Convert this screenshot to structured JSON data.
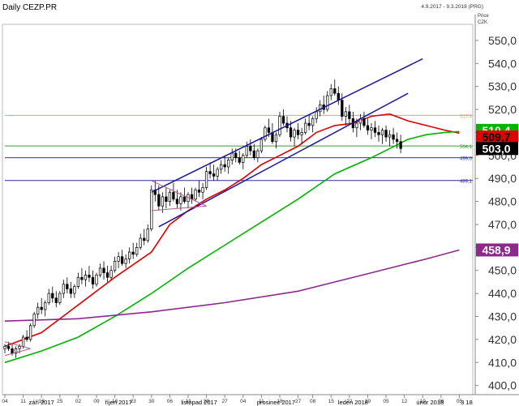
{
  "header": {
    "title": "Daily CEZP.PR",
    "date_range": "4.9.2017 - 9.3.2018 (PRG)"
  },
  "axis_caption": {
    "line1": "Price",
    "line2": "CZK"
  },
  "colors": {
    "candle_up": "#ffffff",
    "candle_down": "#000000",
    "ma_short": "#e00000",
    "ma_mid": "#00b400",
    "ma_long": "#8b2a8b",
    "channel": "#1a1a9a",
    "triangle": "#b05a8a",
    "line_517": "#f0a050",
    "line_504": "#30a030",
    "line_499": "#3030c0",
    "line_489": "#303090"
  },
  "chart_data": {
    "type": "candlestick",
    "title": "Daily CEZP.PR",
    "y_unit": "CZK",
    "ylim": [
      396,
      557
    ],
    "y_ticks": [
      {
        "v": 550,
        "label": "550,0"
      },
      {
        "v": 540,
        "label": "540,0"
      },
      {
        "v": 530,
        "label": "530,0"
      },
      {
        "v": 520,
        "label": "520,0"
      },
      {
        "v": 510,
        "label": "510,0"
      },
      {
        "v": 500,
        "label": "500,0"
      },
      {
        "v": 490,
        "label": "490,0"
      },
      {
        "v": 480,
        "label": "480,0"
      },
      {
        "v": 470,
        "label": "470,0"
      },
      {
        "v": 460,
        "label": "460,0"
      },
      {
        "v": 450,
        "label": "450,0"
      },
      {
        "v": 440,
        "label": "440,0"
      },
      {
        "v": 430,
        "label": "430,0"
      },
      {
        "v": 420,
        "label": "420,0"
      },
      {
        "v": 410,
        "label": "410,0"
      },
      {
        "v": 400,
        "label": "400,0"
      }
    ],
    "x_day_ticks": [
      {
        "i": 0,
        "label": "04"
      },
      {
        "i": 5,
        "label": "11"
      },
      {
        "i": 10,
        "label": "18"
      },
      {
        "i": 15,
        "label": "25"
      },
      {
        "i": 20,
        "label": "02"
      },
      {
        "i": 25,
        "label": "09"
      },
      {
        "i": 30,
        "label": "16"
      },
      {
        "i": 35,
        "label": "23"
      },
      {
        "i": 40,
        "label": "30"
      },
      {
        "i": 45,
        "label": "06"
      },
      {
        "i": 50,
        "label": "13"
      },
      {
        "i": 55,
        "label": "20"
      },
      {
        "i": 60,
        "label": "27"
      },
      {
        "i": 65,
        "label": "04"
      },
      {
        "i": 70,
        "label": "11"
      },
      {
        "i": 75,
        "label": "18"
      },
      {
        "i": 80,
        "label": "27"
      },
      {
        "i": 84,
        "label": "08"
      },
      {
        "i": 89,
        "label": "15"
      },
      {
        "i": 94,
        "label": "22"
      },
      {
        "i": 99,
        "label": "29"
      },
      {
        "i": 104,
        "label": "05"
      },
      {
        "i": 109,
        "label": "12"
      },
      {
        "i": 114,
        "label": "19"
      },
      {
        "i": 119,
        "label": "26"
      },
      {
        "i": 124,
        "label": "05"
      }
    ],
    "x_month_labels": [
      {
        "i": 10,
        "label": "září 2017"
      },
      {
        "i": 31,
        "label": "říjen 2017"
      },
      {
        "i": 53,
        "label": "listopad 2017"
      },
      {
        "i": 74,
        "label": "prosinec 2017"
      },
      {
        "i": 95,
        "label": "leden 2018"
      },
      {
        "i": 116,
        "label": "únor 2018"
      },
      {
        "i": 126,
        "label": "3 18"
      }
    ],
    "candles": [
      [
        416,
        418,
        414,
        417
      ],
      [
        417,
        419,
        415,
        416
      ],
      [
        416,
        418,
        413,
        414
      ],
      [
        414,
        417,
        412,
        416
      ],
      [
        416,
        418,
        414,
        417
      ],
      [
        417,
        422,
        416,
        421
      ],
      [
        421,
        424,
        419,
        420
      ],
      [
        420,
        427,
        419,
        426
      ],
      [
        426,
        432,
        425,
        431
      ],
      [
        431,
        436,
        429,
        434
      ],
      [
        434,
        438,
        431,
        433
      ],
      [
        433,
        437,
        430,
        436
      ],
      [
        436,
        442,
        435,
        440
      ],
      [
        440,
        443,
        436,
        438
      ],
      [
        438,
        441,
        434,
        436
      ],
      [
        436,
        441,
        435,
        440
      ],
      [
        440,
        446,
        438,
        444
      ],
      [
        444,
        447,
        440,
        442
      ],
      [
        442,
        445,
        438,
        440
      ],
      [
        440,
        444,
        438,
        443
      ],
      [
        443,
        449,
        442,
        447
      ],
      [
        447,
        451,
        444,
        446
      ],
      [
        446,
        450,
        443,
        448
      ],
      [
        448,
        452,
        445,
        447
      ],
      [
        447,
        450,
        442,
        444
      ],
      [
        444,
        449,
        443,
        448
      ],
      [
        448,
        453,
        447,
        451
      ],
      [
        451,
        454,
        446,
        449
      ],
      [
        449,
        452,
        445,
        447
      ],
      [
        447,
        452,
        446,
        450
      ],
      [
        450,
        456,
        449,
        454
      ],
      [
        454,
        458,
        451,
        456
      ],
      [
        456,
        459,
        452,
        453
      ],
      [
        453,
        457,
        451,
        455
      ],
      [
        455,
        460,
        453,
        458
      ],
      [
        458,
        462,
        455,
        457
      ],
      [
        457,
        462,
        456,
        460
      ],
      [
        460,
        466,
        459,
        464
      ],
      [
        464,
        468,
        461,
        463
      ],
      [
        463,
        470,
        462,
        468
      ],
      [
        468,
        487,
        467,
        485
      ],
      [
        485,
        489,
        480,
        483
      ],
      [
        483,
        487,
        476,
        478
      ],
      [
        478,
        484,
        475,
        482
      ],
      [
        482,
        486,
        477,
        480
      ],
      [
        480,
        485,
        478,
        484
      ],
      [
        484,
        488,
        480,
        481
      ],
      [
        481,
        485,
        477,
        479
      ],
      [
        479,
        484,
        476,
        482
      ],
      [
        482,
        486,
        479,
        480
      ],
      [
        480,
        484,
        477,
        483
      ],
      [
        483,
        486,
        479,
        481
      ],
      [
        481,
        486,
        480,
        485
      ],
      [
        485,
        489,
        482,
        484
      ],
      [
        484,
        488,
        481,
        486
      ],
      [
        486,
        495,
        485,
        493
      ],
      [
        493,
        497,
        490,
        492
      ],
      [
        492,
        496,
        489,
        491
      ],
      [
        491,
        495,
        489,
        494
      ],
      [
        494,
        498,
        492,
        496
      ],
      [
        496,
        500,
        493,
        495
      ],
      [
        495,
        499,
        492,
        498
      ],
      [
        498,
        503,
        496,
        501
      ],
      [
        501,
        503,
        497,
        499
      ],
      [
        499,
        502,
        496,
        497
      ],
      [
        497,
        501,
        494,
        500
      ],
      [
        500,
        506,
        499,
        504
      ],
      [
        504,
        507,
        500,
        502
      ],
      [
        502,
        505,
        498,
        499
      ],
      [
        499,
        503,
        497,
        502
      ],
      [
        502,
        508,
        501,
        507
      ],
      [
        507,
        513,
        506,
        512
      ],
      [
        512,
        516,
        508,
        510
      ],
      [
        510,
        514,
        505,
        506
      ],
      [
        506,
        510,
        503,
        509
      ],
      [
        509,
        519,
        508,
        517
      ],
      [
        517,
        520,
        513,
        514
      ],
      [
        514,
        517,
        510,
        512
      ],
      [
        512,
        515,
        506,
        508
      ],
      [
        508,
        512,
        504,
        511
      ],
      [
        511,
        514,
        507,
        509
      ],
      [
        509,
        512,
        505,
        510
      ],
      [
        510,
        516,
        509,
        514
      ],
      [
        514,
        518,
        511,
        513
      ],
      [
        513,
        517,
        510,
        516
      ],
      [
        516,
        521,
        514,
        519
      ],
      [
        519,
        524,
        517,
        522
      ],
      [
        522,
        526,
        518,
        520
      ],
      [
        520,
        528,
        519,
        526
      ],
      [
        526,
        531,
        524,
        529
      ],
      [
        529,
        533,
        526,
        527
      ],
      [
        527,
        530,
        522,
        524
      ],
      [
        524,
        527,
        515,
        517
      ],
      [
        517,
        521,
        513,
        519
      ],
      [
        519,
        522,
        514,
        516
      ],
      [
        516,
        519,
        510,
        512
      ],
      [
        512,
        516,
        508,
        514
      ],
      [
        514,
        518,
        511,
        516
      ],
      [
        516,
        519,
        512,
        513
      ],
      [
        513,
        516,
        509,
        511
      ],
      [
        511,
        514,
        507,
        512
      ],
      [
        512,
        515,
        508,
        510
      ],
      [
        510,
        513,
        506,
        509
      ],
      [
        509,
        512,
        505,
        511
      ],
      [
        511,
        513,
        506,
        508
      ],
      [
        508,
        511,
        504,
        509
      ],
      [
        509,
        512,
        505,
        507
      ],
      [
        507,
        510,
        503,
        506
      ],
      [
        506,
        509,
        501,
        503
      ]
    ],
    "moving_averages": [
      {
        "role": "ma_short",
        "points": [
          [
            0,
            417
          ],
          [
            10,
            423
          ],
          [
            20,
            435
          ],
          [
            30,
            447
          ],
          [
            40,
            458
          ],
          [
            45,
            470
          ],
          [
            50,
            476
          ],
          [
            55,
            481
          ],
          [
            60,
            485
          ],
          [
            65,
            490
          ],
          [
            70,
            496
          ],
          [
            75,
            500
          ],
          [
            80,
            504
          ],
          [
            85,
            510
          ],
          [
            90,
            513
          ],
          [
            95,
            514
          ],
          [
            100,
            517
          ],
          [
            105,
            518
          ],
          [
            110,
            515
          ],
          [
            115,
            513
          ],
          [
            120,
            511
          ],
          [
            124,
            509.7
          ]
        ],
        "last_label": "509,7"
      },
      {
        "role": "ma_mid",
        "points": [
          [
            0,
            410
          ],
          [
            10,
            415
          ],
          [
            20,
            421
          ],
          [
            30,
            430
          ],
          [
            40,
            440
          ],
          [
            50,
            451
          ],
          [
            60,
            461
          ],
          [
            70,
            471
          ],
          [
            80,
            481
          ],
          [
            90,
            492
          ],
          [
            100,
            499
          ],
          [
            105,
            503
          ],
          [
            110,
            507
          ],
          [
            115,
            509
          ],
          [
            120,
            510
          ],
          [
            124,
            510.4
          ]
        ],
        "last_label": "510,4"
      },
      {
        "role": "ma_long",
        "points": [
          [
            0,
            428
          ],
          [
            20,
            429
          ],
          [
            40,
            432
          ],
          [
            60,
            436
          ],
          [
            80,
            441
          ],
          [
            100,
            449
          ],
          [
            115,
            455
          ],
          [
            124,
            458.9
          ]
        ],
        "last_label": "458,9"
      }
    ],
    "last_price_label": "503,0",
    "h_lines": [
      {
        "v": 517.4,
        "label": "517,4",
        "role": "line_517",
        "from": 0
      },
      {
        "v": 504.1,
        "label": "504,1",
        "role": "line_504",
        "from": 0
      },
      {
        "v": 499.0,
        "label": "499,0",
        "role": "line_499",
        "from": 0
      },
      {
        "v": 489.1,
        "label": "489,1",
        "role": "line_489",
        "from": 0
      }
    ],
    "trend_lines": [
      {
        "role": "channel",
        "p1": [
          40,
          484
        ],
        "p2": [
          114,
          542
        ]
      },
      {
        "role": "channel",
        "p1": [
          42,
          469
        ],
        "p2": [
          110,
          527
        ]
      },
      {
        "role": "triangle",
        "p1": [
          40,
          489
        ],
        "p2": [
          55,
          478
        ]
      },
      {
        "role": "triangle",
        "p1": [
          40,
          476
        ],
        "p2": [
          55,
          478
        ]
      },
      {
        "role": "triangle",
        "p1": [
          0,
          419
        ],
        "p2": [
          7,
          416
        ]
      },
      {
        "role": "triangle",
        "p1": [
          0,
          413
        ],
        "p2": [
          7,
          416
        ]
      }
    ]
  }
}
